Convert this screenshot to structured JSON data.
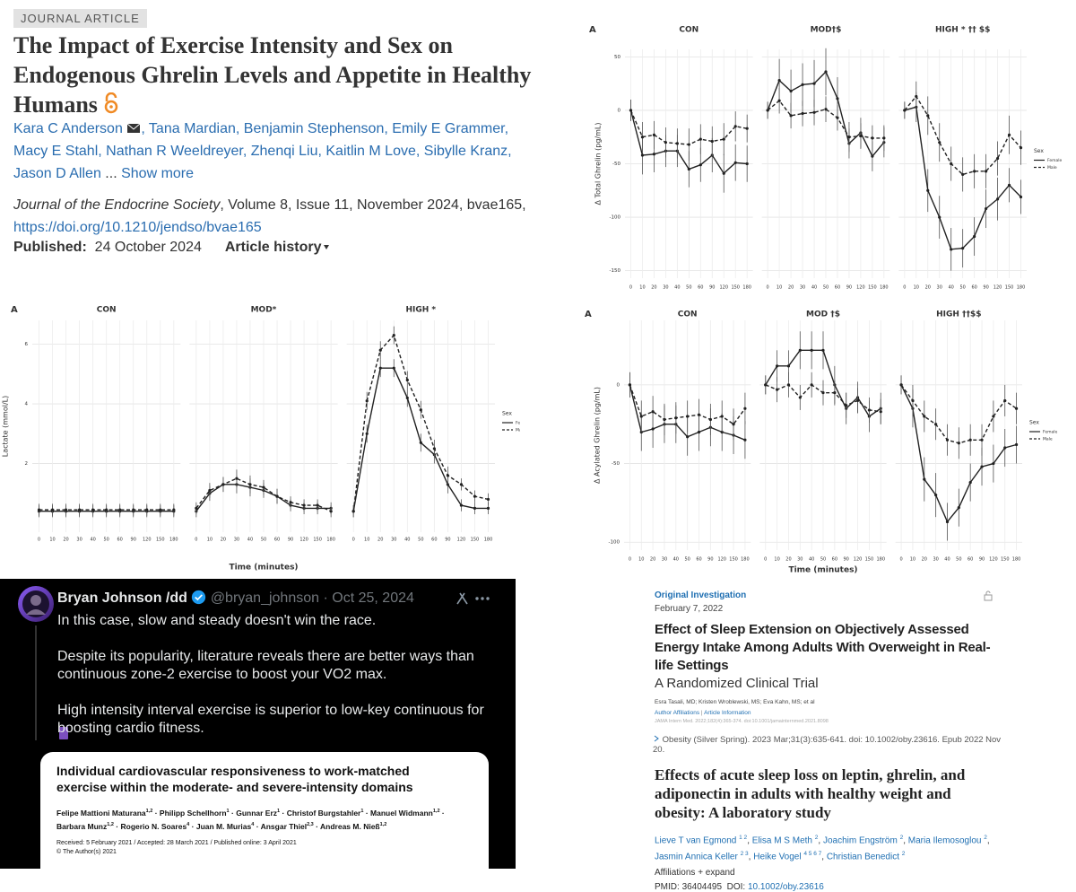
{
  "article": {
    "badge": "JOURNAL ARTICLE",
    "title": "The Impact of Exercise Intensity and Sex on Endogenous Ghrelin Levels and Appetite in Healthy Humans",
    "authors": [
      "Kara C Anderson",
      "Tana Mardian",
      "Benjamin Stephenson",
      "Emily E Grammer",
      "Macy E Stahl",
      "Nathan R Weeldreyer",
      "Zhenqi Liu",
      "Kaitlin M Love",
      "Sibylle Kranz",
      "Jason D Allen"
    ],
    "author_separator": ",",
    "ellipsis": "...",
    "show_more": "Show more",
    "journal": "Journal of the Endocrine Society",
    "citation": ", Volume 8, Issue 11, November 2024, bvae165,",
    "doi": "https://doi.org/10.1210/jendso/bvae165",
    "published_label": "Published:",
    "published_date": "24 October 2024",
    "history": "Article history"
  },
  "chart_data": [
    {
      "type": "line",
      "panel_label": "A",
      "y_label": "Δ Total Ghrelin (pg/mL)",
      "ylim": [
        -157,
        57
      ],
      "yticks": [
        50,
        0,
        -50,
        -100,
        -150
      ],
      "grid": true,
      "legend": "right",
      "legend_title": "Sex",
      "categories": [
        0,
        10,
        20,
        30,
        40,
        50,
        60,
        90,
        120,
        150,
        180
      ],
      "series": [
        {
          "name": "Female",
          "color": "#222222",
          "dash": false
        },
        {
          "name": "Male",
          "color": "#222222",
          "dash": true
        }
      ],
      "panels": [
        {
          "title": "CON",
          "values": [
            [
              0,
              -42,
              -41,
              -38,
              -38,
              -55,
              -51,
              -42,
              -59,
              -49,
              -50
            ],
            [
              0,
              -25,
              -23,
              -30,
              -31,
              -32,
              -27,
              -29,
              -27,
              -15,
              -17
            ]
          ],
          "errors": [
            [
              10,
              18,
              17,
              15,
              15,
              17,
              16,
              16,
              18,
              17,
              17
            ],
            [
              10,
              14,
              13,
              14,
              14,
              15,
              14,
              14,
              15,
              14,
              13
            ]
          ]
        },
        {
          "title": "MOD†$",
          "values": [
            [
              0,
              28,
              18,
              24,
              25,
              36,
              11,
              -31,
              -21,
              -43,
              -30
            ],
            [
              0,
              9,
              -5,
              -3,
              -2,
              1,
              -7,
              -25,
              -24,
              -26,
              -26
            ]
          ],
          "errors": [
            [
              8,
              20,
              20,
              20,
              22,
              22,
              20,
              14,
              14,
              14,
              14
            ],
            [
              8,
              12,
              12,
              12,
              12,
              12,
              12,
              14,
              12,
              12,
              12
            ]
          ]
        },
        {
          "title": "HIGH * †† $$",
          "values": [
            [
              0,
              3,
              -75,
              -100,
              -130,
              -129,
              -118,
              -92,
              -83,
              -70,
              -81
            ],
            [
              0,
              13,
              -5,
              -30,
              -50,
              -60,
              -57,
              -57,
              -45,
              -23,
              -35
            ]
          ],
          "errors": [
            [
              8,
              14,
              20,
              20,
              20,
              18,
              18,
              18,
              20,
              16,
              16
            ],
            [
              8,
              14,
              18,
              18,
              16,
              16,
              16,
              16,
              16,
              18,
              16
            ]
          ]
        }
      ]
    },
    {
      "type": "line",
      "panel_label": "A",
      "y_label": "Lactate (mmol/L)",
      "x_label": "Time (minutes)",
      "ylim": [
        -0.3,
        6.8
      ],
      "yticks": [
        2,
        4,
        6
      ],
      "grid": true,
      "legend": "right",
      "legend_title": "Sex",
      "categories": [
        0,
        10,
        20,
        30,
        40,
        50,
        60,
        90,
        120,
        150,
        180
      ],
      "series": [
        {
          "name": "Female",
          "color": "#222222",
          "dash": false
        },
        {
          "name": "Male",
          "color": "#222222",
          "dash": true
        }
      ],
      "panels": [
        {
          "title": "CON",
          "values": [
            [
              0.4,
              0.4,
              0.4,
              0.4,
              0.4,
              0.4,
              0.4,
              0.4,
              0.4,
              0.4,
              0.4
            ],
            [
              0.45,
              0.45,
              0.45,
              0.45,
              0.45,
              0.45,
              0.45,
              0.45,
              0.45,
              0.45,
              0.45
            ]
          ],
          "errors": [
            [
              0.2,
              0.2,
              0.2,
              0.2,
              0.2,
              0.2,
              0.2,
              0.2,
              0.2,
              0.2,
              0.2
            ],
            [
              0.2,
              0.2,
              0.2,
              0.2,
              0.2,
              0.2,
              0.2,
              0.2,
              0.2,
              0.2,
              0.2
            ]
          ]
        },
        {
          "title": "MOD*",
          "values": [
            [
              0.4,
              1.0,
              1.3,
              1.3,
              1.2,
              1.1,
              0.9,
              0.6,
              0.5,
              0.5,
              0.5
            ],
            [
              0.5,
              1.1,
              1.3,
              1.5,
              1.3,
              1.2,
              0.9,
              0.7,
              0.6,
              0.6,
              0.4
            ]
          ],
          "errors": [
            [
              0.2,
              0.25,
              0.25,
              0.3,
              0.3,
              0.25,
              0.25,
              0.2,
              0.2,
              0.2,
              0.2
            ],
            [
              0.2,
              0.25,
              0.25,
              0.3,
              0.3,
              0.25,
              0.25,
              0.2,
              0.2,
              0.2,
              0.2
            ]
          ]
        },
        {
          "title": "HIGH *",
          "values": [
            [
              0.4,
              3.0,
              5.2,
              5.2,
              4.2,
              2.7,
              2.3,
              1.3,
              0.6,
              0.5,
              0.5
            ],
            [
              0.4,
              4.1,
              5.8,
              6.3,
              4.8,
              3.8,
              2.5,
              1.6,
              1.3,
              0.9,
              0.8
            ]
          ],
          "errors": [
            [
              0.2,
              0.3,
              0.3,
              0.3,
              0.3,
              0.3,
              0.3,
              0.3,
              0.2,
              0.2,
              0.2
            ],
            [
              0.2,
              0.3,
              0.3,
              0.3,
              0.3,
              0.3,
              0.3,
              0.3,
              0.2,
              0.2,
              0.2
            ]
          ]
        }
      ]
    },
    {
      "type": "line",
      "panel_label": "A",
      "y_label": "Δ Acylated Ghrelin (pg/mL)",
      "x_label": "Time (minutes)",
      "ylim": [
        -105,
        41
      ],
      "yticks": [
        0,
        -50,
        -100
      ],
      "grid": true,
      "legend": "right",
      "legend_title": "Sex",
      "categories": [
        0,
        10,
        20,
        30,
        40,
        50,
        60,
        90,
        120,
        150,
        180
      ],
      "series": [
        {
          "name": "Female",
          "color": "#222222",
          "dash": false
        },
        {
          "name": "Male",
          "color": "#222222",
          "dash": true
        }
      ],
      "panels": [
        {
          "title": "CON",
          "values": [
            [
              0,
              -30,
              -28,
              -25,
              -25,
              -33,
              -30,
              -27,
              -30,
              -32,
              -35
            ],
            [
              0,
              -20,
              -17,
              -22,
              -21,
              -20,
              -19,
              -22,
              -20,
              -25,
              -15
            ]
          ],
          "errors": [
            [
              8,
              12,
              12,
              12,
              12,
              12,
              12,
              12,
              12,
              12,
              12
            ],
            [
              8,
              10,
              10,
              10,
              10,
              10,
              10,
              10,
              10,
              10,
              10
            ]
          ]
        },
        {
          "title": "MOD †$",
          "values": [
            [
              0,
              12,
              12,
              22,
              22,
              22,
              0,
              -15,
              -8,
              -20,
              -15
            ],
            [
              0,
              -3,
              0,
              -8,
              0,
              -5,
              -5,
              -13,
              -10,
              -16,
              -17
            ]
          ],
          "errors": [
            [
              6,
              10,
              10,
              12,
              12,
              12,
              12,
              10,
              10,
              10,
              10
            ],
            [
              6,
              8,
              8,
              8,
              8,
              8,
              8,
              8,
              8,
              8,
              8
            ]
          ]
        },
        {
          "title": "HIGH ††$$",
          "values": [
            [
              0,
              -15,
              -60,
              -70,
              -87,
              -78,
              -62,
              -52,
              -50,
              -40,
              -38
            ],
            [
              0,
              -10,
              -20,
              -25,
              -35,
              -37,
              -35,
              -35,
              -20,
              -10,
              -15
            ]
          ],
          "errors": [
            [
              6,
              12,
              14,
              14,
              12,
              12,
              12,
              12,
              12,
              12,
              12
            ],
            [
              6,
              10,
              10,
              10,
              10,
              10,
              10,
              10,
              10,
              10,
              10
            ]
          ]
        }
      ]
    }
  ],
  "tweet": {
    "name": "Bryan Johnson /dd",
    "handle": "@bryan_johnson",
    "dot": "·",
    "date": "Oct 25, 2024",
    "paragraphs": [
      "In this case, slow and steady doesn't win the race.",
      "Despite its popularity, literature reveals there are better ways than continuous zone-2 exercise to boost your VO2 max.",
      "High intensity interval exercise is superior to low-key continuous for boosting cardio fitness."
    ],
    "card": {
      "title": "Individual cardiovascular responsiveness to work-matched exercise within the moderate- and severe-intensity domains",
      "authors": [
        {
          "name": "Felipe Mattioni Maturana",
          "sup": "1,2"
        },
        {
          "name": "Philipp Schellhorn",
          "sup": "1"
        },
        {
          "name": "Gunnar Erz",
          "sup": "1"
        },
        {
          "name": "Christof Burgstahler",
          "sup": "1"
        },
        {
          "name": "Manuel Widmann",
          "sup": "1,2"
        },
        {
          "name": "Barbara Munz",
          "sup": "1,2"
        },
        {
          "name": "Rogerio N. Soares",
          "sup": "4"
        },
        {
          "name": "Juan M. Murias",
          "sup": "4"
        },
        {
          "name": "Ansgar Thiel",
          "sup": "2,3"
        },
        {
          "name": "Andreas M. Nieß",
          "sup": "1,2"
        }
      ],
      "author_separator": "·",
      "received": "Received: 5 February 2021 / Accepted: 28 March 2021 / Published online: 3 April 2021",
      "copyright": "© The Author(s) 2021"
    }
  },
  "jama": {
    "label": "Original Investigation",
    "date": "February 7, 2022",
    "title": "Effect of Sleep Extension on Objectively Assessed Energy Intake Among Adults With Overweight in Real-life Settings",
    "subtitle": "A Randomized Clinical Trial",
    "authors": "Esra Tasali, MD; Kristen Wroblewski, MS; Eva Kahn, MS; et al",
    "links": [
      "Author Affiliations",
      "Article Information"
    ],
    "link_separator": "|",
    "citation": "JAMA Intern Med. 2022;182(4):365-374. doi:10.1001/jamainternmed.2021.8098"
  },
  "pubmed": {
    "citation": "Obesity (Silver Spring). 2023 Mar;31(3):635-641. doi: 10.1002/oby.23616. Epub 2022 Nov 20.",
    "title": "Effects of acute sleep loss on leptin, ghrelin, and adiponectin in adults with healthy weight and obesity: A laboratory study",
    "authors": [
      {
        "name": "Lieve T van Egmond",
        "sup": "1 2"
      },
      {
        "name": "Elisa M S Meth",
        "sup": "2"
      },
      {
        "name": "Joachim Engström",
        "sup": "2"
      },
      {
        "name": "Maria Ilemosoglou",
        "sup": "2"
      },
      {
        "name": "Jasmin Annica Keller",
        "sup": "2 3"
      },
      {
        "name": "Heike Vogel",
        "sup": "4 5 6 7"
      },
      {
        "name": "Christian Benedict",
        "sup": "2"
      }
    ],
    "author_separator": ",",
    "affiliations": "Affiliations",
    "expand": "+ expand",
    "pmid_label": "PMID:",
    "pmid": "36404495",
    "doi_label": "DOI:",
    "doi": "10.1002/oby.23616"
  }
}
